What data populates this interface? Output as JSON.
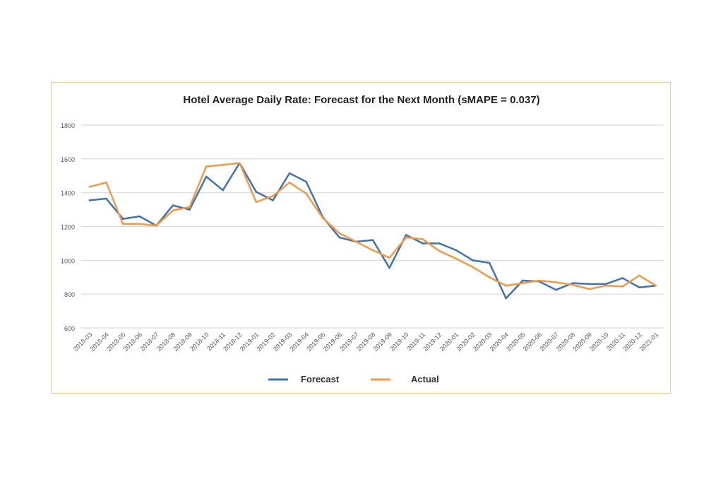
{
  "chart_data": {
    "type": "line",
    "title": "Hotel Average Daily Rate: Forecast for the Next Month (sMAPE = 0.037)",
    "xlabel": "",
    "ylabel": "",
    "ylim": [
      600,
      1800
    ],
    "yticks": [
      600,
      800,
      1000,
      1200,
      1400,
      1600,
      1800
    ],
    "grid": true,
    "legend_position": "bottom",
    "categories": [
      "2018-03",
      "2018-04",
      "2018-05",
      "2018-06",
      "2018-07",
      "2018-08",
      "2018-09",
      "2018-10",
      "2018-11",
      "2018-12",
      "2019-01",
      "2019-02",
      "2019-03",
      "2019-04",
      "2019-05",
      "2019-06",
      "2019-07",
      "2019-08",
      "2019-09",
      "2019-10",
      "2019-11",
      "2019-12",
      "2020-01",
      "2020-02",
      "2020-03",
      "2020-04",
      "2020-05",
      "2020-06",
      "2020-07",
      "2020-08",
      "2020-09",
      "2020-10",
      "2020-11",
      "2020-12",
      "2021-01"
    ],
    "series": [
      {
        "name": "Forecast",
        "color": "#4472a8",
        "values": [
          1355,
          1365,
          1245,
          1260,
          1205,
          1325,
          1300,
          1495,
          1415,
          1575,
          1405,
          1355,
          1515,
          1465,
          1255,
          1135,
          1110,
          1120,
          955,
          1150,
          1100,
          1100,
          1060,
          1000,
          985,
          775,
          880,
          875,
          825,
          865,
          860,
          860,
          895,
          840,
          850
        ]
      },
      {
        "name": "Actual",
        "color": "#ed9a4a",
        "values": [
          1435,
          1460,
          1215,
          1215,
          1205,
          1295,
          1315,
          1555,
          1565,
          1575,
          1345,
          1380,
          1460,
          1395,
          1250,
          1160,
          1110,
          1060,
          1015,
          1135,
          1125,
          1055,
          1010,
          960,
          900,
          850,
          865,
          880,
          870,
          855,
          830,
          850,
          845,
          910,
          850
        ]
      }
    ]
  }
}
